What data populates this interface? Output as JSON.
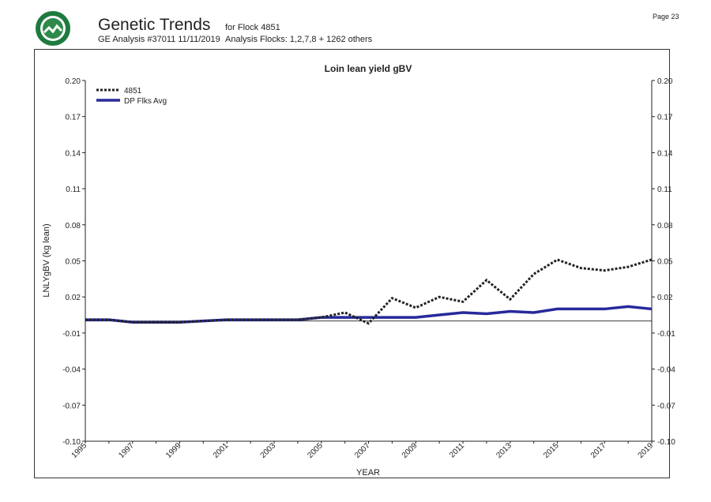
{
  "header": {
    "title": "Genetic Trends",
    "flock": "for Flock 4851",
    "analysis": "GE Analysis #37011 11/11/2019",
    "analysis_flocks": "Analysis Flocks: 1,2,7,8 + 1262 others",
    "page": "Page 23",
    "logo_icon": "sheep-improvement-seal-logo"
  },
  "chart_data": {
    "type": "line",
    "title": "Loin lean yield gBV",
    "xlabel": "YEAR",
    "ylabel": "LNLYgBV (kg lean)",
    "xlim": [
      1995,
      2019
    ],
    "ylim": [
      -0.1,
      0.2
    ],
    "x_ticks": [
      "1995",
      "1997",
      "1999",
      "2001",
      "2003",
      "2005",
      "2007",
      "2009",
      "2011",
      "2013",
      "2015",
      "2017",
      "2019"
    ],
    "y_ticks": [
      "0.20",
      "0.17",
      "0.14",
      "0.11",
      "0.08",
      "0.05",
      "0.02",
      "-0.01",
      "-0.04",
      "-0.07",
      "-0.10"
    ],
    "reference_line": 0,
    "legend_position": "top-left",
    "x": [
      1995,
      1996,
      1997,
      1998,
      1999,
      2000,
      2001,
      2002,
      2003,
      2004,
      2005,
      2006,
      2007,
      2008,
      2009,
      2010,
      2011,
      2012,
      2013,
      2014,
      2015,
      2016,
      2017,
      2018,
      2019
    ],
    "series": [
      {
        "name": "4851",
        "style": "dotted",
        "color": "#222222",
        "values": [
          0.001,
          0.001,
          -0.001,
          -0.001,
          -0.001,
          0.0,
          0.001,
          0.001,
          0.001,
          0.001,
          0.003,
          0.007,
          -0.002,
          0.019,
          0.011,
          0.02,
          0.016,
          0.034,
          0.018,
          0.039,
          0.051,
          0.044,
          0.042,
          0.045,
          0.051
        ]
      },
      {
        "name": "DP Flks Avg",
        "style": "solid",
        "color": "#27299a",
        "values": [
          0.001,
          0.001,
          -0.001,
          -0.001,
          -0.001,
          0.0,
          0.001,
          0.001,
          0.001,
          0.001,
          0.003,
          0.003,
          0.003,
          0.003,
          0.003,
          0.005,
          0.007,
          0.006,
          0.008,
          0.007,
          0.01,
          0.01,
          0.01,
          0.012,
          0.01
        ]
      }
    ]
  }
}
